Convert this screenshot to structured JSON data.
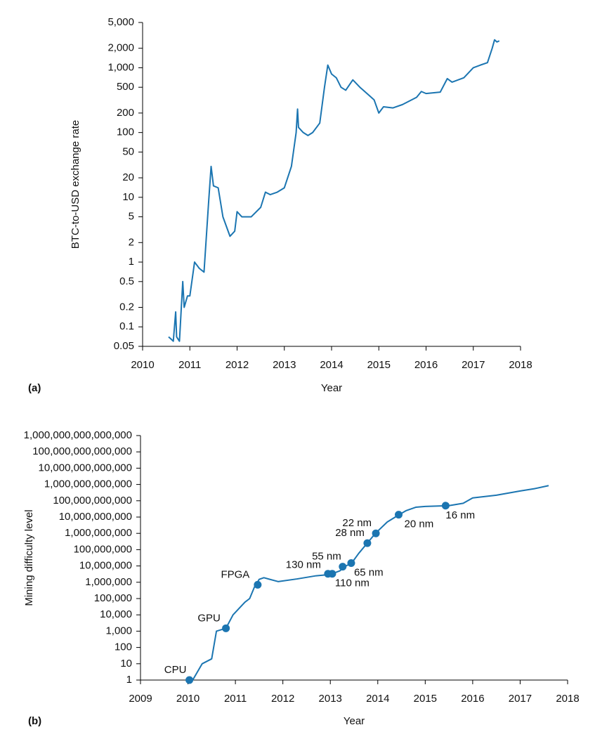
{
  "chart_data": [
    {
      "type": "line",
      "panel_label": "(a)",
      "y_label": "BTC-to-USD exchange rate",
      "x_label": "Year",
      "log_y": true,
      "color": "#1b75b1",
      "xlim": [
        2010,
        2018
      ],
      "xticks": [
        2010,
        2011,
        2012,
        2013,
        2014,
        2015,
        2016,
        2017,
        2018
      ],
      "ylim": [
        0.05,
        5000
      ],
      "yticks": [
        0.05,
        0.1,
        0.2,
        0.5,
        1,
        2,
        5,
        10,
        20,
        50,
        100,
        200,
        500,
        {
          "value": 1000,
          "label": "1,000"
        },
        {
          "value": 2000,
          "label": "2,000"
        },
        {
          "value": 5000,
          "label": "5,000"
        }
      ],
      "x": [
        2010.55,
        2010.6,
        2010.65,
        2010.7,
        2010.72,
        2010.78,
        2010.85,
        2010.88,
        2010.95,
        2011.0,
        2011.1,
        2011.2,
        2011.3,
        2011.4,
        2011.45,
        2011.5,
        2011.6,
        2011.7,
        2011.85,
        2011.95,
        2012.0,
        2012.1,
        2012.3,
        2012.5,
        2012.6,
        2012.7,
        2012.85,
        2013.0,
        2013.15,
        2013.25,
        2013.28,
        2013.3,
        2013.4,
        2013.5,
        2013.6,
        2013.75,
        2013.85,
        2013.92,
        2014.0,
        2014.1,
        2014.2,
        2014.3,
        2014.45,
        2014.6,
        2014.75,
        2014.9,
        2015.0,
        2015.1,
        2015.3,
        2015.5,
        2015.8,
        2015.9,
        2016.0,
        2016.3,
        2016.45,
        2016.55,
        2016.8,
        2017.0,
        2017.15,
        2017.3,
        2017.4,
        2017.45,
        2017.5,
        2017.55
      ],
      "values": [
        0.07,
        0.065,
        0.06,
        0.17,
        0.07,
        0.06,
        0.5,
        0.2,
        0.3,
        0.3,
        1.0,
        0.8,
        0.7,
        9,
        30,
        15,
        14,
        5,
        2.5,
        3,
        6,
        5,
        5,
        7,
        12,
        11,
        12,
        14,
        30,
        100,
        230,
        120,
        100,
        90,
        100,
        140,
        500,
        1100,
        800,
        700,
        500,
        450,
        650,
        500,
        400,
        320,
        200,
        250,
        240,
        270,
        350,
        430,
        400,
        420,
        680,
        600,
        700,
        1000,
        1100,
        1200,
        2000,
        2700,
        2500,
        2600
      ]
    },
    {
      "type": "line",
      "panel_label": "(b)",
      "y_label": "Mining difficulty level",
      "x_label": "Year",
      "log_y": true,
      "color": "#1b75b1",
      "xlim": [
        2009,
        2018
      ],
      "xticks": [
        2009,
        2010,
        2011,
        2012,
        2013,
        2014,
        2015,
        2016,
        2017,
        2018
      ],
      "ylim": [
        1,
        1000000000000000
      ],
      "yticks": [
        1,
        10,
        100,
        {
          "value": 1000,
          "label": "1,000"
        },
        {
          "value": 10000,
          "label": "10,000"
        },
        {
          "value": 100000,
          "label": "100,000"
        },
        {
          "value": 1000000,
          "label": "1,000,000"
        },
        {
          "value": 10000000,
          "label": "10,000,000"
        },
        {
          "value": 100000000,
          "label": "100,000,000"
        },
        {
          "value": 1000000000,
          "label": "1,000,000,000"
        },
        {
          "value": 10000000000,
          "label": "10,000,000,000"
        },
        {
          "value": 100000000000,
          "label": "100,000,000,000"
        },
        {
          "value": 1000000000000,
          "label": "1,000,000,000,000"
        },
        {
          "value": 10000000000000,
          "label": "10,000,000,000,000"
        },
        {
          "value": 100000000000000,
          "label": "100,000,000,000,000"
        },
        {
          "value": 1000000000000000,
          "label": "1,000,000,000,000,000"
        }
      ],
      "x": [
        2010.0,
        2010.1,
        2010.3,
        2010.5,
        2010.6,
        2010.8,
        2010.95,
        2011.2,
        2011.3,
        2011.4,
        2011.5,
        2011.6,
        2011.9,
        2012.3,
        2012.7,
        2013.0,
        2013.2,
        2013.3,
        2013.45,
        2013.6,
        2013.8,
        2013.95,
        2014.2,
        2014.45,
        2014.6,
        2014.8,
        2015.0,
        2015.5,
        2015.8,
        2016.0,
        2016.5,
        2017.0,
        2017.3,
        2017.6
      ],
      "values": [
        1,
        1,
        10,
        20,
        1000,
        1500,
        10000,
        60000,
        100000,
        500000,
        1500000,
        1900000,
        1100000,
        1600000,
        2500000,
        3000000,
        5000000,
        9000000,
        15000000,
        60000000,
        300000000,
        1000000000,
        5000000000,
        14000000000,
        25000000000,
        40000000000,
        45000000000,
        50000000000,
        70000000000,
        150000000000,
        220000000000,
        400000000000,
        550000000000,
        850000000000
      ],
      "annotations": [
        {
          "label": "CPU",
          "x": 2010.03,
          "y": 1
        },
        {
          "label": "GPU",
          "x": 2010.8,
          "y": 1500
        },
        {
          "label": "FPGA",
          "x": 2011.47,
          "y": 700000
        },
        {
          "label": "130 nm",
          "x": 2012.95,
          "y": 3300000
        },
        {
          "label": "110 nm",
          "x": 2013.04,
          "y": 3300000
        },
        {
          "label": "55 nm",
          "x": 2013.26,
          "y": 9000000
        },
        {
          "label": "65 nm",
          "x": 2013.44,
          "y": 15000000
        },
        {
          "label": "28 nm",
          "x": 2013.78,
          "y": 250000000
        },
        {
          "label": "22 nm",
          "x": 2013.96,
          "y": 1000000000
        },
        {
          "label": "20 nm",
          "x": 2014.44,
          "y": 14000000000
        },
        {
          "label": "16 nm",
          "x": 2015.43,
          "y": 50000000000
        }
      ]
    }
  ]
}
